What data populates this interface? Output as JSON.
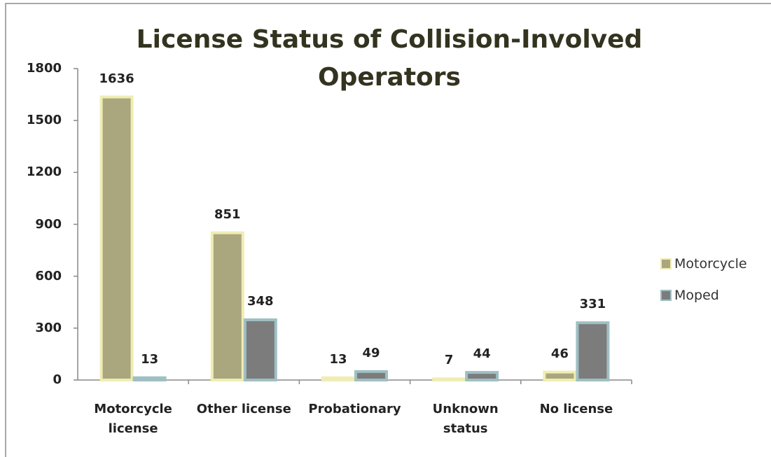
{
  "chart_data": {
    "type": "bar",
    "title": "License Status of Collision-Involved Operators",
    "categories": [
      "Motorcycle license",
      "Other license",
      "Probationary",
      "Unknown status",
      "No license"
    ],
    "series": [
      {
        "name": "Motorcycle",
        "color": "#aaa77f",
        "values": [
          1636,
          851,
          13,
          7,
          46
        ]
      },
      {
        "name": "Moped",
        "color": "#7c7c7c",
        "values": [
          13,
          348,
          49,
          44,
          331
        ]
      }
    ],
    "ylim": [
      0,
      1800
    ],
    "yticks": [
      0,
      300,
      600,
      900,
      1200,
      1500,
      1800
    ],
    "legend": "right"
  }
}
